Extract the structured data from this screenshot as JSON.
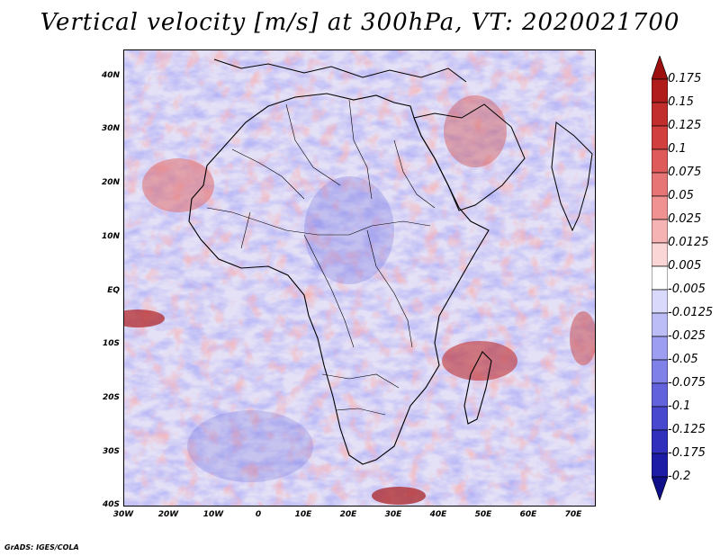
{
  "title": "Vertical velocity [m/s] at 300hPa, VT: 2020021700",
  "map": {
    "lat_labels": [
      "40N",
      "30N",
      "20N",
      "10N",
      "EQ",
      "10S",
      "20S",
      "30S",
      "40S"
    ],
    "lat_values": [
      40,
      30,
      20,
      10,
      0,
      -10,
      -20,
      -30,
      -40
    ],
    "lon_labels": [
      "30W",
      "20W",
      "10W",
      "0",
      "10E",
      "20E",
      "30E",
      "40E",
      "50E",
      "60E",
      "70E"
    ],
    "lon_values": [
      -30,
      -20,
      -10,
      0,
      10,
      20,
      30,
      40,
      50,
      60,
      70
    ],
    "lon_range": [
      -30,
      75
    ],
    "lat_range": [
      -40,
      45
    ]
  },
  "colorbar": {
    "labels": [
      "0.175",
      "0.15",
      "0.125",
      "0.1",
      "0.075",
      "0.05",
      "0.025",
      "0.0125",
      "0.005",
      "-0.005",
      "-0.0125",
      "-0.025",
      "-0.05",
      "-0.075",
      "-0.1",
      "-0.125",
      "-0.175",
      "-0.2"
    ],
    "colors": [
      "#9e1010",
      "#b01c1c",
      "#c22d2d",
      "#d23f3f",
      "#df5a5a",
      "#e87575",
      "#f09292",
      "#f6b3b3",
      "#fbd6d6",
      "#ffffff",
      "#d9d9fb",
      "#bcbcf7",
      "#9d9df1",
      "#8080e9",
      "#6262dd",
      "#4848cf",
      "#3030bc",
      "#1c1ca6",
      "#0f0f8a"
    ]
  },
  "credit": "GrADS: IGES/COLA"
}
